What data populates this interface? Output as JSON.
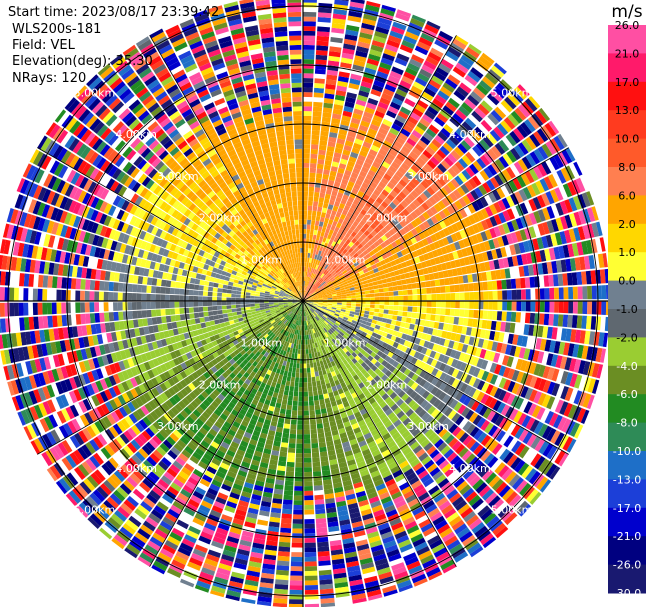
{
  "header": {
    "start_time": "Start time: 2023/08/17 23:39:42",
    "instrument": "WLS200s-181",
    "field": "Field: VEL",
    "elevation": "Elevation(deg): 35.30",
    "nrays": "NRays: 120"
  },
  "colorbar": {
    "unit": "m/s",
    "ticks": [
      "26.0",
      "21.0",
      "17.0",
      "13.0",
      "10.0",
      "8.0",
      "6.0",
      "2.0",
      "1.0",
      "0.0",
      "-1.0",
      "-2.0",
      "-4.0",
      "-6.0",
      "-8.0",
      "-10.0",
      "-13.0",
      "-17.0",
      "-21.0",
      "-26.0",
      "-30.0"
    ],
    "colors": [
      "#ff4fa3",
      "#ff1a6a",
      "#ff1010",
      "#ff3b1f",
      "#ff5a2a",
      "#ff7f50",
      "#ffa500",
      "#ffd700",
      "#ffff33",
      "#708090",
      "#5f6870",
      "#9acd32",
      "#6b8e23",
      "#228b22",
      "#2e8b57",
      "#1e6fc8",
      "#1c3fd8",
      "#0000cd",
      "#000080",
      "#191970"
    ]
  },
  "chart_data": {
    "type": "ppi-radar",
    "field": "VEL",
    "units": "m/s",
    "elevation_deg": 35.3,
    "nrays": 120,
    "range_rings_km": [
      1.0,
      2.0,
      3.0,
      4.0,
      5.0
    ],
    "ring_labels": [
      "1.00km",
      "2.00km",
      "3.00km",
      "4.00km",
      "5.00km"
    ],
    "max_range_km": 5.2,
    "color_scale": [
      -30.0,
      26.0
    ],
    "pattern": {
      "sectors": [
        {
          "direction": "northeast",
          "value_mps": 8.0
        },
        {
          "direction": "north",
          "value_mps": 5.0
        },
        {
          "direction": "northwest",
          "value_mps": 2.0
        },
        {
          "direction": "east",
          "value_mps": 1.5
        },
        {
          "direction": "southeast",
          "value_mps": -2.0
        },
        {
          "direction": "south",
          "value_mps": -6.0
        },
        {
          "direction": "southwest",
          "value_mps": -6.0
        },
        {
          "direction": "west",
          "value_mps": -1.0
        }
      ],
      "valid_range_km": [
        0.3,
        3.3
      ],
      "noise_beyond_km": 3.3
    }
  }
}
